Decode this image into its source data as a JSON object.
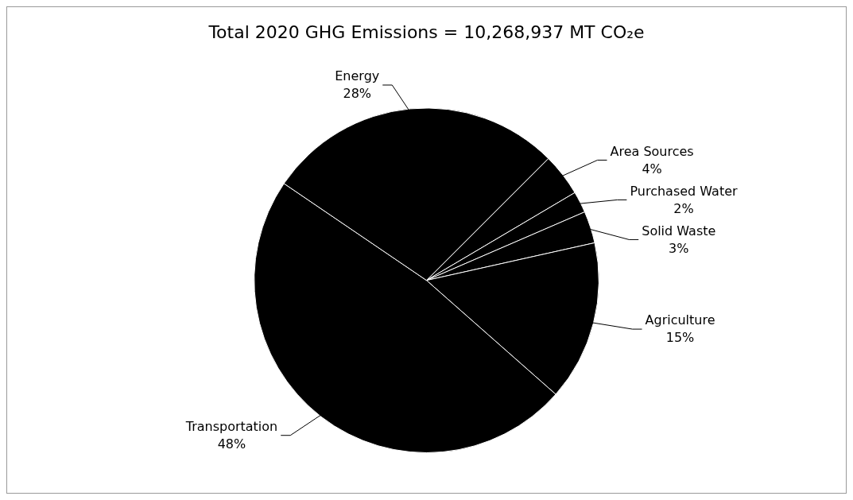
{
  "chart_data": {
    "type": "pie",
    "title": "Total 2020 GHG Emissions = 10,268,937 MT CO₂e",
    "categories": [
      "Area Sources",
      "Purchased Water",
      "Solid Waste",
      "Agriculture",
      "Transportation",
      "Energy"
    ],
    "values": [
      4,
      2,
      3,
      15,
      48,
      28
    ],
    "value_labels": [
      "4%",
      "2%",
      "3%",
      "15%",
      "48%",
      "28%"
    ],
    "colors": [
      "#000000",
      "#000000",
      "#000000",
      "#000000",
      "#000000",
      "#000000"
    ]
  }
}
